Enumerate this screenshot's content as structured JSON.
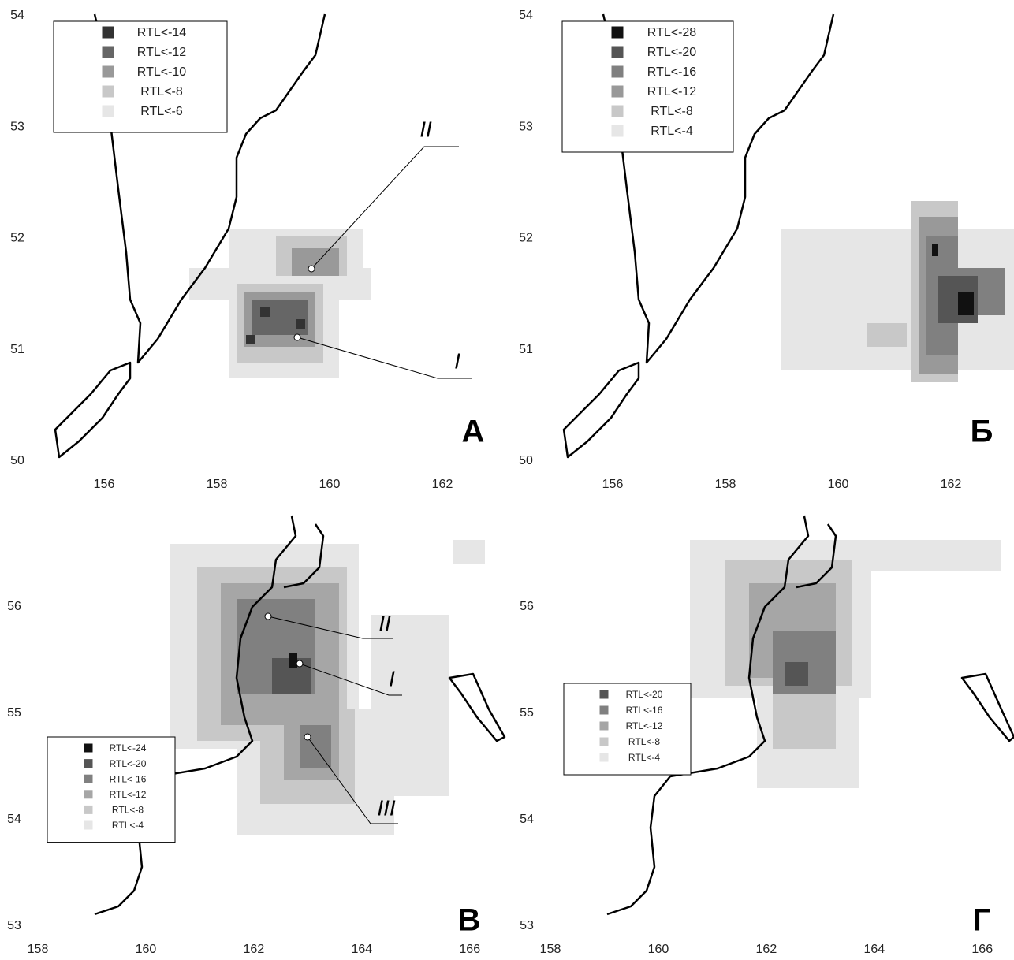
{
  "panels": [
    {
      "label": "А",
      "xlim": [
        155,
        163
      ],
      "ylim": [
        50,
        54
      ],
      "xticks": [
        156,
        158,
        160,
        162
      ],
      "yticks": [
        50,
        51,
        52,
        53,
        54
      ],
      "legend": [
        {
          "label": "RTL<-14",
          "color": "#333333"
        },
        {
          "label": "RTL<-12",
          "color": "#666666"
        },
        {
          "label": "RTL<-10",
          "color": "#999999"
        },
        {
          "label": "RTL<-8",
          "color": "#c8c8c8"
        },
        {
          "label": "RTL<-6",
          "color": "#e6e6e6"
        }
      ],
      "annotations": [
        "II",
        "I"
      ]
    },
    {
      "label": "Б",
      "xlim": [
        155,
        163
      ],
      "ylim": [
        50,
        54
      ],
      "xticks": [
        156,
        158,
        160,
        162
      ],
      "yticks": [
        50,
        51,
        52,
        53,
        54
      ],
      "legend": [
        {
          "label": "RTL<-28",
          "color": "#111111"
        },
        {
          "label": "RTL<-20",
          "color": "#555555"
        },
        {
          "label": "RTL<-16",
          "color": "#808080"
        },
        {
          "label": "RTL<-12",
          "color": "#999999"
        },
        {
          "label": "RTL<-8",
          "color": "#c8c8c8"
        },
        {
          "label": "RTL<-4",
          "color": "#e6e6e6"
        }
      ],
      "annotations": []
    },
    {
      "label": "В",
      "xlim": [
        158,
        166.5
      ],
      "ylim": [
        53,
        56.8
      ],
      "xticks": [
        158,
        160,
        162,
        164,
        166
      ],
      "yticks": [
        53,
        54,
        55,
        56
      ],
      "legend": [
        {
          "label": "RTL<-24",
          "color": "#111111"
        },
        {
          "label": "RTL<-20",
          "color": "#555555"
        },
        {
          "label": "RTL<-16",
          "color": "#808080"
        },
        {
          "label": "RTL<-12",
          "color": "#a6a6a6"
        },
        {
          "label": "RTL<-8",
          "color": "#c8c8c8"
        },
        {
          "label": "RTL<-4",
          "color": "#e6e6e6"
        }
      ],
      "annotations": [
        "II",
        "I",
        "III"
      ]
    },
    {
      "label": "Г",
      "xlim": [
        158,
        166.5
      ],
      "ylim": [
        53,
        56.8
      ],
      "xticks": [
        158,
        160,
        162,
        164,
        166
      ],
      "yticks": [
        53,
        54,
        55,
        56
      ],
      "legend": [
        {
          "label": "RTL<-20",
          "color": "#555555"
        },
        {
          "label": "RTL<-16",
          "color": "#808080"
        },
        {
          "label": "RTL<-12",
          "color": "#a6a6a6"
        },
        {
          "label": "RTL<-8",
          "color": "#c8c8c8"
        },
        {
          "label": "RTL<-4",
          "color": "#e6e6e6"
        }
      ],
      "annotations": []
    }
  ]
}
